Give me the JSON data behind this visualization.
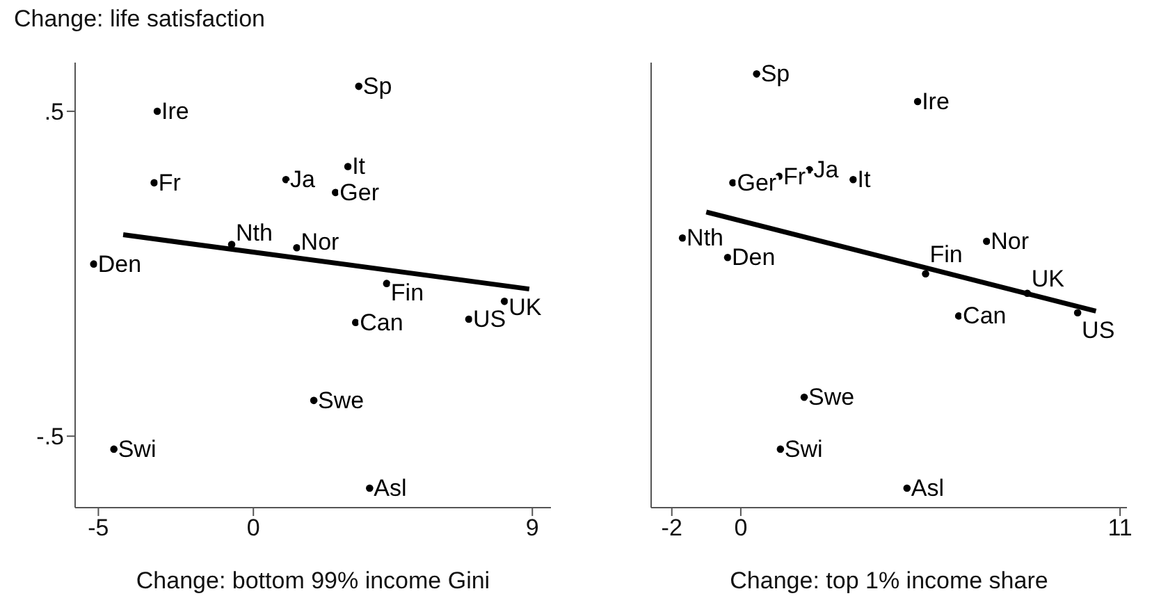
{
  "chart_data": [
    {
      "type": "scatter",
      "ylabel": "Change: life satisfaction",
      "xlabel": "Change: bottom 99% income Gini",
      "xlim": [
        -5.75,
        9.6
      ],
      "xticks": [
        -5,
        0,
        9
      ],
      "ylim": [
        -0.72,
        0.65
      ],
      "yticks": [
        {
          "value": 0.5,
          "label": ".5"
        },
        {
          "value": -0.5,
          "label": "-.5"
        }
      ],
      "grid": false,
      "legend": false,
      "series": [
        {
          "type": "line",
          "color": "#000000",
          "x": [
            -4.2,
            8.9
          ],
          "values": [
            0.12,
            -0.047
          ]
        },
        {
          "type": "scatter",
          "marker": "circle",
          "color": "#000000",
          "x": [
            3.4,
            -3.1,
            -3.2,
            1.05,
            2.65,
            3.05,
            -0.7,
            1.4,
            -5.15,
            4.3,
            8.1,
            6.95,
            3.3,
            1.95,
            -4.5,
            3.75
          ],
          "values": [
            0.577,
            0.5,
            0.28,
            0.29,
            0.25,
            0.33,
            0.09,
            0.08,
            0.03,
            -0.03,
            -0.085,
            -0.14,
            -0.15,
            -0.39,
            -0.54,
            -0.66
          ],
          "value_labels": [
            "Sp",
            "Ire",
            "Fr",
            "Ja",
            "Ger",
            "It",
            "Nth",
            "Nor",
            "Den",
            "Fin",
            "UK",
            "US",
            "Can",
            "Swe",
            "Swi",
            "Asl"
          ]
        }
      ]
    },
    {
      "type": "scatter",
      "xlabel": "Change: top 1% income share",
      "xlim": [
        -2.6,
        11.2
      ],
      "xticks": [
        -2,
        0,
        11
      ],
      "ylim": [
        -0.72,
        0.65
      ],
      "tick_labels": "x",
      "grid": false,
      "legend": false,
      "series": [
        {
          "type": "line",
          "color": "#000000",
          "x": [
            -1.0,
            10.3
          ],
          "values": [
            0.19,
            -0.115
          ]
        },
        {
          "type": "scatter",
          "marker": "circle",
          "color": "#000000",
          "x": [
            0.46,
            5.13,
            -0.23,
            1.11,
            1.99,
            3.26,
            -1.69,
            -0.38,
            7.13,
            5.36,
            8.31,
            9.77,
            6.32,
            1.84,
            1.15,
            4.82
          ],
          "values": [
            0.615,
            0.53,
            0.28,
            0.3,
            0.32,
            0.29,
            0.11,
            0.05,
            0.1,
            0.0,
            -0.06,
            -0.12,
            -0.13,
            -0.38,
            -0.54,
            -0.66
          ],
          "value_labels": [
            "Sp",
            "Ire",
            "Ger",
            "Fr",
            "Ja",
            "It",
            "Nth",
            "Den",
            "Nor",
            "Fin",
            "UK",
            "US",
            "Can",
            "Swe",
            "Swi",
            "Asl"
          ]
        }
      ]
    }
  ]
}
